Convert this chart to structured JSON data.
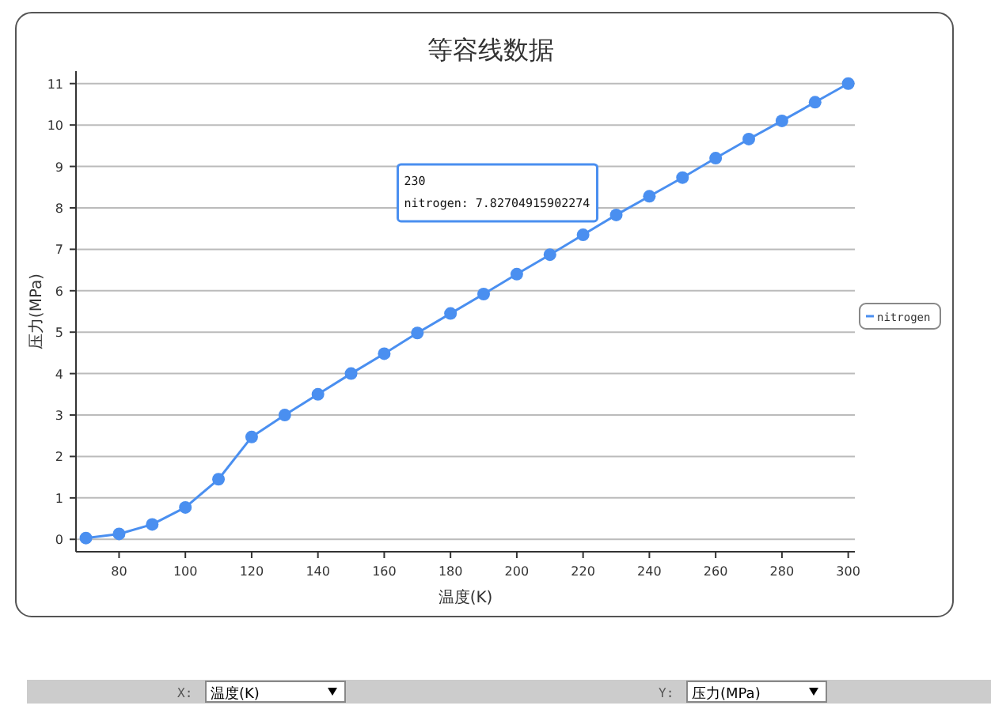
{
  "chart_data": {
    "type": "line",
    "title": "等容线数据",
    "xlabel": "温度(K)",
    "ylabel": "压力(MPa)",
    "x": [
      70,
      80,
      90,
      100,
      110,
      120,
      130,
      140,
      150,
      160,
      170,
      180,
      190,
      200,
      210,
      220,
      230,
      240,
      250,
      260,
      270,
      280,
      290,
      300
    ],
    "series": [
      {
        "name": "nitrogen",
        "color": "#4a8ff0",
        "values": [
          0.03,
          0.13,
          0.36,
          0.77,
          1.45,
          2.47,
          3.0,
          3.5,
          4.0,
          4.48,
          4.98,
          5.45,
          5.92,
          6.4,
          6.87,
          7.35,
          7.83,
          8.28,
          8.73,
          9.2,
          9.66,
          10.1,
          10.55,
          11.0
        ]
      }
    ],
    "xlim": [
      67,
      302
    ],
    "xticks": [
      80,
      100,
      120,
      140,
      160,
      180,
      200,
      220,
      240,
      260,
      280,
      300
    ],
    "ylim": [
      -0.3,
      11.3
    ],
    "yticks": [
      0,
      1,
      2,
      3,
      4,
      5,
      6,
      7,
      8,
      9,
      10,
      11
    ],
    "grid": "y",
    "legend": "right",
    "marker": "circle",
    "line_style": "solid",
    "annotations": [
      {
        "text": "230\nnitrogen: 7.82704915902274",
        "x": 230,
        "y": 7.83
      },
      "X:",
      "温度(K)",
      "Y:",
      "压力(MPa)"
    ]
  }
}
